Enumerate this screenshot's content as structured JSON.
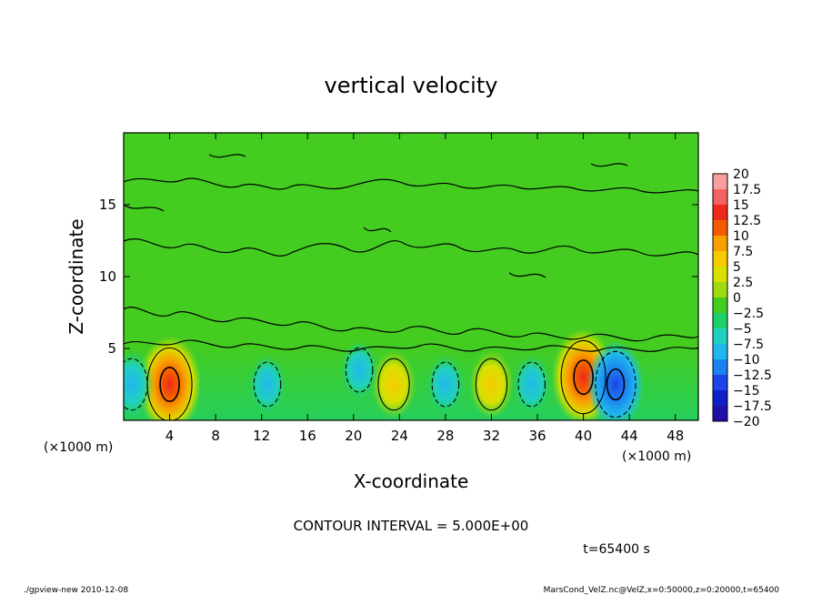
{
  "chart_data": {
    "type": "heatmap",
    "title": "vertical velocity",
    "xlabel": "X-coordinate",
    "ylabel": "Z-coordinate",
    "x_unit_label": "(×1000 m)",
    "y_unit_label": "(×1000 m)",
    "xlim": [
      0,
      50
    ],
    "ylim": [
      0,
      20
    ],
    "x_ticks": [
      4,
      8,
      12,
      16,
      20,
      24,
      28,
      32,
      36,
      40,
      44,
      48
    ],
    "y_ticks": [
      5,
      10,
      15
    ],
    "contour_interval_label": "CONTOUR INTERVAL = 5.000E+00",
    "time_label": "t=65400 s",
    "colorbar": {
      "levels": [
        "20",
        "17.5",
        "15",
        "12.5",
        "10",
        "7.5",
        "5",
        "2.5",
        "0",
        "−2.5",
        "−5",
        "−7.5",
        "−10",
        "−12.5",
        "−15",
        "−17.5",
        "−20"
      ],
      "colors": [
        "#f8a0a0",
        "#f46262",
        "#ee2a1a",
        "#f45a00",
        "#f8a000",
        "#f6cc00",
        "#d8e000",
        "#9edc10",
        "#44cc20",
        "#1ed06a",
        "#20d0c0",
        "#20b8ec",
        "#1c80f0",
        "#1c44e8",
        "#1020c8",
        "#2010a8",
        "#6010a8"
      ]
    },
    "features": [
      {
        "x": 4,
        "z": 2.5,
        "value": 15,
        "kind": "updraft"
      },
      {
        "x": 40,
        "z": 3,
        "value": 15,
        "kind": "updraft"
      },
      {
        "x": 23.5,
        "z": 2.5,
        "value": 7.5,
        "kind": "updraft"
      },
      {
        "x": 32,
        "z": 2.5,
        "value": 7.5,
        "kind": "updraft"
      },
      {
        "x": 0.7,
        "z": 2.5,
        "value": -7.5,
        "kind": "downdraft"
      },
      {
        "x": 42.8,
        "z": 2.5,
        "value": -12.5,
        "kind": "downdraft"
      },
      {
        "x": 12.5,
        "z": 2.5,
        "value": -5,
        "kind": "downdraft"
      },
      {
        "x": 20.5,
        "z": 3.5,
        "value": -5,
        "kind": "downdraft"
      },
      {
        "x": 28,
        "z": 2.5,
        "value": -5,
        "kind": "downdraft"
      },
      {
        "x": 35.5,
        "z": 2.5,
        "value": -5,
        "kind": "downdraft"
      }
    ]
  },
  "footer": {
    "left": "./gpview-new  2010-12-08",
    "right": "MarsCond_VelZ.nc@VelZ,x=0:50000,z=0:20000,t=65400"
  }
}
